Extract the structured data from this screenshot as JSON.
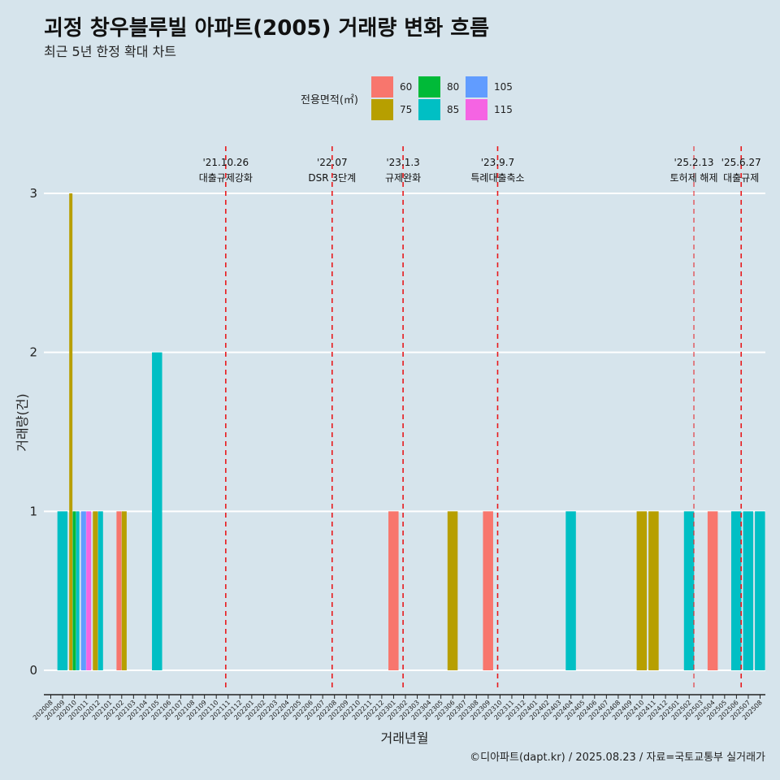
{
  "header": {
    "title": "괴정 창우블루빌 아파트(2005) 거래량 변화 흐름",
    "subtitle": "최근 5년 한정 확대 차트"
  },
  "caption": "©디아파트(dapt.kr) / 2025.08.23 / 자료=국토교통부 실거래가",
  "colors": {
    "background": "#d6e4ec",
    "gridline": "#ffffff",
    "event_line": "#e8191c"
  },
  "chart_data": {
    "type": "bar",
    "xlabel": "거래년월",
    "ylabel": "거래량(건)",
    "ylim": [
      0,
      3
    ],
    "yticks": [
      0,
      1,
      2,
      3
    ],
    "grid": true,
    "legend_position": "top",
    "categories": [
      "202008",
      "202009",
      "202010",
      "202011",
      "202012",
      "202101",
      "202102",
      "202103",
      "202104",
      "202105",
      "202106",
      "202107",
      "202108",
      "202109",
      "202110",
      "202111",
      "202112",
      "202201",
      "202202",
      "202203",
      "202204",
      "202205",
      "202206",
      "202207",
      "202208",
      "202209",
      "202210",
      "202211",
      "202212",
      "202301",
      "202302",
      "202303",
      "202304",
      "202305",
      "202306",
      "202307",
      "202308",
      "202309",
      "202310",
      "202311",
      "202312",
      "202401",
      "202402",
      "202403",
      "202404",
      "202405",
      "202406",
      "202407",
      "202408",
      "202409",
      "202410",
      "202411",
      "202412",
      "202501",
      "202502",
      "202503",
      "202504",
      "202505",
      "202506",
      "202507",
      "202508"
    ],
    "legend": {
      "title": "전용면적(㎡)",
      "entries": [
        {
          "label": "60",
          "color": "#f8766d"
        },
        {
          "label": "75",
          "color": "#b79f00"
        },
        {
          "label": "80",
          "color": "#00ba38"
        },
        {
          "label": "85",
          "color": "#00bfc4"
        },
        {
          "label": "105",
          "color": "#619cff"
        },
        {
          "label": "115",
          "color": "#f564e3"
        }
      ]
    },
    "bars": [
      {
        "month": "202009",
        "area": "85",
        "value": 1
      },
      {
        "month": "202010",
        "area": "75",
        "value": 3
      },
      {
        "month": "202010",
        "area": "80",
        "value": 1
      },
      {
        "month": "202010",
        "area": "85",
        "value": 1
      },
      {
        "month": "202011",
        "area": "105",
        "value": 1
      },
      {
        "month": "202011",
        "area": "115",
        "value": 1
      },
      {
        "month": "202012",
        "area": "75",
        "value": 1
      },
      {
        "month": "202012",
        "area": "85",
        "value": 1
      },
      {
        "month": "202102",
        "area": "60",
        "value": 1
      },
      {
        "month": "202102",
        "area": "75",
        "value": 1
      },
      {
        "month": "202105",
        "area": "85",
        "value": 2
      },
      {
        "month": "202301",
        "area": "60",
        "value": 1
      },
      {
        "month": "202306",
        "area": "75",
        "value": 1
      },
      {
        "month": "202309",
        "area": "60",
        "value": 1
      },
      {
        "month": "202404",
        "area": "85",
        "value": 1
      },
      {
        "month": "202410",
        "area": "75",
        "value": 1
      },
      {
        "month": "202411",
        "area": "75",
        "value": 1
      },
      {
        "month": "202502",
        "area": "85",
        "value": 1
      },
      {
        "month": "202504",
        "area": "60",
        "value": 1
      },
      {
        "month": "202506",
        "area": "85",
        "value": 1
      },
      {
        "month": "202507",
        "area": "85",
        "value": 1
      },
      {
        "month": "202508",
        "area": "85",
        "value": 1
      }
    ],
    "events": [
      {
        "date": "'21.10.26",
        "label": "대출규제강화",
        "x": 14.8,
        "style": "dashed"
      },
      {
        "date": "'22.07",
        "label": "DSR 3단계",
        "x": 23.8,
        "style": "dashed"
      },
      {
        "date": "'23.1.3",
        "label": "규제완화",
        "x": 29.8,
        "style": "dashed"
      },
      {
        "date": "'23.9.7",
        "label": "특례대출축소",
        "x": 37.8,
        "style": "dashed"
      },
      {
        "date": "'25.2.13",
        "label": "토허제 해제",
        "x": 54.4,
        "style": "thin-dashed"
      },
      {
        "date": "'25.6.27",
        "label": "대출규제",
        "x": 58.4,
        "style": "dashed"
      }
    ]
  }
}
